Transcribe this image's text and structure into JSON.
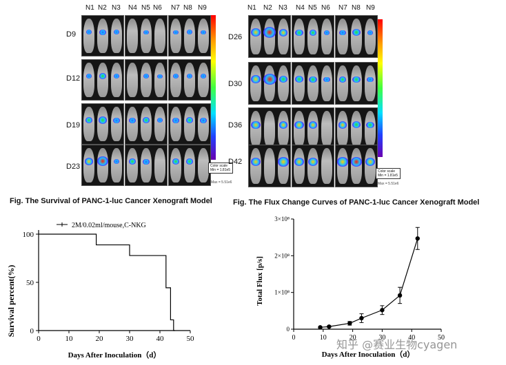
{
  "left_panel": {
    "columns": [
      "N1",
      "N2",
      "N3",
      "N4",
      "N5",
      "N6",
      "N7",
      "N8",
      "N9"
    ],
    "rows": [
      "D9",
      "D12",
      "D19",
      "D23"
    ],
    "scale": {
      "title": "Color scale",
      "min": "Min =\n1.81e5",
      "max": "Max =\n5.51e6"
    }
  },
  "right_panel": {
    "columns": [
      "N1",
      "N2",
      "N3",
      "N4",
      "N5",
      "N6",
      "N7",
      "N8",
      "N9"
    ],
    "rows": [
      "D26",
      "D30",
      "D36",
      "D42"
    ],
    "scale": {
      "title": "Color scale",
      "min": "Min =\n1.81e5",
      "max": "Max =\n5.51e6"
    }
  },
  "captions": {
    "left": "Fig. The Survival of PANC-1-luc Cancer Xenograft Model",
    "right": "Fig. The Flux Change Curves of PANC-1-luc Cancer Xenograft Model"
  },
  "watermark": "知乎 @赛业生物cyagen",
  "chart_data": [
    {
      "type": "line",
      "step": true,
      "series": [
        {
          "name": "2M/0.02ml/mouse,C-NKG",
          "x": [
            0,
            19,
            19,
            30,
            30,
            42,
            42,
            43.5,
            43.5,
            44.5,
            44.5,
            45
          ],
          "y": [
            100,
            100,
            88.9,
            88.9,
            77.8,
            77.8,
            44.4,
            44.4,
            11.1,
            11.1,
            0,
            0
          ]
        }
      ],
      "xlabel": "Days After Inoculation（d）",
      "ylabel": "Survival percent(%)",
      "xlim": [
        0,
        50
      ],
      "ylim": [
        0,
        100
      ],
      "xticks": [
        0,
        10,
        20,
        30,
        40,
        50
      ],
      "yticks": [
        0,
        50,
        100
      ],
      "legend_position": "top-left"
    },
    {
      "type": "line",
      "series": [
        {
          "x": [
            9,
            12,
            19,
            23,
            30,
            36,
            42
          ],
          "y": [
            0.05,
            0.07,
            0.16,
            0.3,
            0.52,
            0.92,
            2.47
          ],
          "err": [
            0.02,
            0.02,
            0.05,
            0.12,
            0.12,
            0.22,
            0.3
          ]
        }
      ],
      "y_unit": "x10^8",
      "xlabel": "Days After Inoculation（d）",
      "ylabel": "Total Flux [p/s]",
      "xlim": [
        0,
        50
      ],
      "ylim": [
        0,
        3
      ],
      "xticks": [
        0,
        10,
        20,
        30,
        40,
        50
      ],
      "ytick_labels": [
        "0",
        "1×10⁸",
        "2×10⁸",
        "3×10⁸"
      ]
    }
  ]
}
